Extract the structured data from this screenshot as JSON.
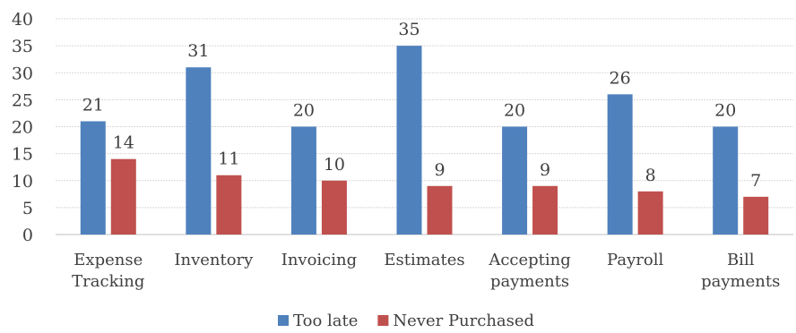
{
  "chart_data": {
    "type": "bar",
    "categories": [
      [
        "Expense",
        "Tracking"
      ],
      [
        "Inventory"
      ],
      [
        "Invoicing"
      ],
      [
        "Estimates"
      ],
      [
        "Accepting",
        "payments"
      ],
      [
        "Payroll"
      ],
      [
        "Bill",
        "payments"
      ]
    ],
    "series": [
      {
        "name": "Too late",
        "color": "#4f81bd",
        "values": [
          21,
          31,
          20,
          35,
          20,
          26,
          20
        ]
      },
      {
        "name": "Never Purchased",
        "color": "#c0504d",
        "values": [
          14,
          11,
          10,
          9,
          9,
          8,
          7
        ]
      }
    ],
    "yticks": [
      0,
      5,
      10,
      15,
      20,
      25,
      30,
      35,
      40
    ],
    "ylim": [
      0,
      40
    ],
    "grid": true,
    "legend": "bottom",
    "data_labels": true
  }
}
